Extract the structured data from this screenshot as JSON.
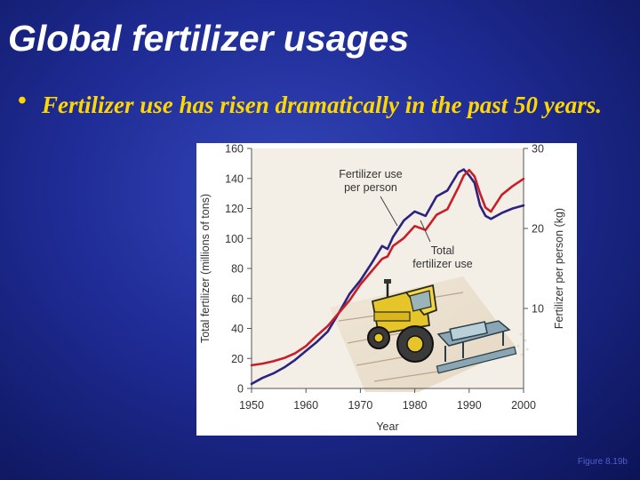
{
  "slide": {
    "title": "Global fertilizer usages",
    "bullet": "Fertilizer use has risen dramatically in the past 50 years.",
    "caption": "Figure 8.19b"
  },
  "colors": {
    "background": "#1f2c96",
    "title": "#ffffff",
    "bullet_text": "#ffd700",
    "total_series": "#2a2480",
    "per_person_series": "#c81e2a",
    "caption": "#4f5fd0"
  },
  "chart_data": {
    "type": "line",
    "xlabel": "Year",
    "ylabel": "Total fertilizer (millions of tons)",
    "y2label": "Fertilizer per person (kg)",
    "xlim": [
      1950,
      2000
    ],
    "ylim": [
      0,
      160
    ],
    "y2lim": [
      0,
      30
    ],
    "x_ticks": [
      1950,
      1960,
      1970,
      1980,
      1990,
      2000
    ],
    "y_ticks": [
      0,
      20,
      40,
      60,
      80,
      100,
      120,
      140,
      160
    ],
    "y2_ticks": [
      10,
      20,
      30
    ],
    "annotations": [
      "Fertilizer use per person",
      "Total fertilizer use"
    ],
    "series": [
      {
        "axis": "left",
        "x": [
          1950,
          1952,
          1954,
          1956,
          1958,
          1960,
          1962,
          1964,
          1966,
          1968,
          1970,
          1972,
          1974,
          1975,
          1976,
          1978,
          1980,
          1982,
          1984,
          1986,
          1988,
          1989,
          1990,
          1991,
          1992,
          1993,
          1994,
          1996,
          1998,
          2000
        ],
        "values": [
          3,
          7,
          10,
          14,
          19,
          25,
          31,
          38,
          50,
          63,
          72,
          83,
          95,
          93,
          101,
          112,
          118,
          115,
          128,
          132,
          144,
          146,
          142,
          137,
          122,
          115,
          113,
          117,
          120,
          122
        ]
      },
      {
        "axis": "right",
        "x": [
          1950,
          1952,
          1954,
          1956,
          1958,
          1960,
          1962,
          1964,
          1966,
          1968,
          1970,
          1972,
          1974,
          1975,
          1976,
          1978,
          1980,
          1982,
          1984,
          1986,
          1988,
          1989,
          1990,
          1991,
          1992,
          1993,
          1994,
          1996,
          1998,
          2000
        ],
        "values": [
          2.9,
          3.1,
          3.4,
          3.8,
          4.4,
          5.3,
          6.6,
          7.8,
          9.4,
          11,
          13,
          14.6,
          16.2,
          16.5,
          17.8,
          18.8,
          20.3,
          19.8,
          21.7,
          22.4,
          25.1,
          26.6,
          27.3,
          26.5,
          24.4,
          22.6,
          22.1,
          24.2,
          25.3,
          26.2
        ]
      }
    ]
  }
}
